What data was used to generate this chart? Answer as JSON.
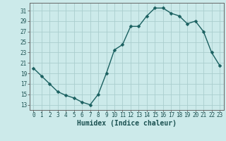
{
  "x": [
    0,
    1,
    2,
    3,
    4,
    5,
    6,
    7,
    8,
    9,
    10,
    11,
    12,
    13,
    14,
    15,
    16,
    17,
    18,
    19,
    20,
    21,
    22,
    23
  ],
  "y": [
    20,
    18.5,
    17,
    15.5,
    14.8,
    14.3,
    13.5,
    13,
    15,
    19,
    23.5,
    24.5,
    28,
    28,
    30,
    31.5,
    31.5,
    30.5,
    30,
    28.5,
    29,
    27,
    23,
    20.5
  ],
  "line_color": "#1a6060",
  "marker_color": "#1a6060",
  "bg_color": "#cceaea",
  "grid_color": "#aacece",
  "xlabel": "Humidex (Indice chaleur)",
  "xlim": [
    -0.5,
    23.5
  ],
  "ylim": [
    12,
    32.5
  ],
  "yticks": [
    13,
    15,
    17,
    19,
    21,
    23,
    25,
    27,
    29,
    31
  ],
  "xticks": [
    0,
    1,
    2,
    3,
    4,
    5,
    6,
    7,
    8,
    9,
    10,
    11,
    12,
    13,
    14,
    15,
    16,
    17,
    18,
    19,
    20,
    21,
    22,
    23
  ],
  "marker_size": 2.5,
  "line_width": 1.0,
  "tick_fontsize": 5.5,
  "xlabel_fontsize": 7.0
}
